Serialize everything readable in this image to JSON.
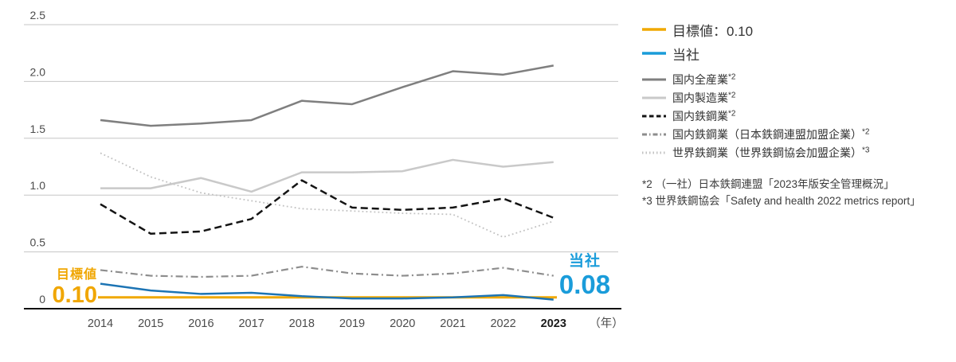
{
  "colors": {
    "target_accent": "#F0A600",
    "company_accent": "#1A9CDA"
  },
  "chart_data": {
    "type": "line",
    "x": [
      "2014",
      "2015",
      "2016",
      "2017",
      "2018",
      "2019",
      "2020",
      "2021",
      "2022",
      "2023"
    ],
    "x_unit": "（年）",
    "x_last_bold": true,
    "yticks": [
      "2.5",
      "2.0",
      "1.5",
      "1.0",
      "0.5",
      "0"
    ],
    "ylim": [
      0,
      2.5
    ],
    "grid_color": "#c6c6c6",
    "axis_color": "#111111",
    "legend_position": "right",
    "series": [
      {
        "key": "target",
        "name": "目標値：0.10",
        "emphasis": true,
        "style": "solid",
        "width": 3,
        "color": "#F0A800",
        "legend_color": "#F0A800",
        "values": [
          0.1,
          0.1,
          0.1,
          0.1,
          0.1,
          0.1,
          0.1,
          0.1,
          0.1,
          0.1
        ]
      },
      {
        "key": "company",
        "name": "当社",
        "emphasis": true,
        "style": "solid",
        "width": 2.5,
        "color": "#1C74B4",
        "legend_color": "#199CD9",
        "values": [
          0.22,
          0.16,
          0.13,
          0.14,
          0.11,
          0.09,
          0.09,
          0.1,
          0.12,
          0.08
        ]
      },
      {
        "key": "all_industries",
        "name": "国内全産業",
        "note": "*2",
        "style": "solid",
        "width": 2.5,
        "color": "#7f7f7f",
        "values": [
          1.66,
          1.61,
          1.63,
          1.66,
          1.83,
          1.8,
          1.95,
          2.09,
          2.06,
          2.14
        ]
      },
      {
        "key": "manufacturing",
        "name": "国内製造業",
        "note": "*2",
        "style": "solid",
        "width": 2.5,
        "color": "#c9c9c9",
        "values": [
          1.06,
          1.06,
          1.15,
          1.03,
          1.2,
          1.2,
          1.21,
          1.31,
          1.25,
          1.29
        ]
      },
      {
        "key": "steel",
        "name": "国内鉄鋼業",
        "note": "*2",
        "style": "dashed",
        "width": 2.5,
        "color": "#141414",
        "values": [
          0.92,
          0.66,
          0.68,
          0.79,
          1.13,
          0.89,
          0.87,
          0.89,
          0.97,
          0.8
        ]
      },
      {
        "key": "steel_federation",
        "name": "国内鉄鋼業（日本鉄鋼連盟加盟企業）",
        "note": "*2",
        "style": "dashdot",
        "width": 2.2,
        "color": "#8d8d8d",
        "values": [
          0.34,
          0.29,
          0.28,
          0.29,
          0.37,
          0.31,
          0.29,
          0.31,
          0.36,
          0.29
        ]
      },
      {
        "key": "world_steel",
        "name": "世界鉄鋼業（世界鉄鋼協会加盟企業）",
        "note": "*3",
        "style": "dotted",
        "width": 1.8,
        "color": "#c2c2c2",
        "values": [
          1.37,
          1.16,
          1.02,
          0.95,
          0.88,
          0.86,
          0.84,
          0.83,
          0.63,
          0.77
        ]
      }
    ],
    "draw_order": [
      "world_steel",
      "steel_federation",
      "manufacturing",
      "all_industries",
      "steel",
      "target",
      "company"
    ]
  },
  "annotations": {
    "target_label": "目標値",
    "target_value": "0.10",
    "company_label": "当社",
    "company_value": "0.08"
  },
  "footnotes": [
    "*2 （一社）日本鉄鋼連盟「2023年版安全管理概況」",
    "*3 世界鉄鋼協会「Safety and health 2022 metrics report」"
  ]
}
